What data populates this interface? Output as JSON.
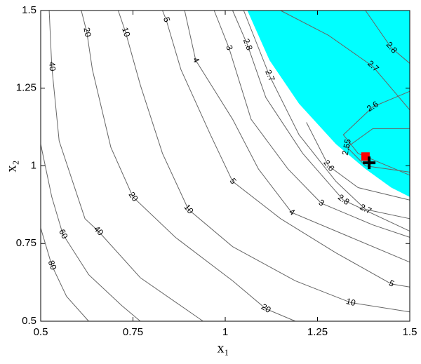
{
  "chart_data": {
    "type": "contour",
    "xlabel": "x₁",
    "ylabel": "x₂",
    "xlim": [
      0.5,
      1.5
    ],
    "ylim": [
      0.5,
      1.5
    ],
    "xticks": [
      0.5,
      0.75,
      1,
      1.25,
      1.5
    ],
    "yticks": [
      0.5,
      0.75,
      1,
      1.25,
      1.5
    ],
    "line_color": "#666666",
    "region": {
      "color": "#00ffff",
      "x": [
        1.06,
        1.12,
        1.2,
        1.3,
        1.38,
        1.45,
        1.5,
        1.5
      ],
      "y": [
        1.5,
        1.34,
        1.2,
        1.07,
        0.99,
        0.93,
        0.9,
        1.5
      ]
    },
    "contours": [
      {
        "level": 80,
        "x": [
          0.5,
          0.53,
          0.57,
          0.63
        ],
        "y": [
          0.8,
          0.68,
          0.58,
          0.5
        ]
      },
      {
        "level": 60,
        "x": [
          0.5,
          0.53,
          0.56,
          0.63,
          0.72,
          0.77
        ],
        "y": [
          1.07,
          0.9,
          0.78,
          0.65,
          0.55,
          0.5
        ]
      },
      {
        "level": 40,
        "x": [
          0.523,
          0.53,
          0.55,
          0.62,
          0.656,
          0.77,
          0.94
        ],
        "y": [
          1.5,
          1.32,
          1.08,
          0.83,
          0.79,
          0.64,
          0.5
        ]
      },
      {
        "level": 20,
        "x": [
          0.61,
          0.625,
          0.64,
          0.69,
          0.75,
          0.865,
          1.02,
          1.11,
          1.19
        ],
        "y": [
          1.5,
          1.43,
          1.31,
          1.06,
          0.9,
          0.77,
          0.63,
          0.54,
          0.5
        ]
      },
      {
        "level": 10,
        "x": [
          0.71,
          0.73,
          0.77,
          0.83,
          0.9,
          1.02,
          1.19,
          1.34,
          1.5
        ],
        "y": [
          1.5,
          1.43,
          1.26,
          1.04,
          0.86,
          0.74,
          0.63,
          0.56,
          0.53
        ]
      },
      {
        "level": 5,
        "x": [
          0.83,
          0.84,
          0.88,
          0.96,
          1.02,
          1.15,
          1.3,
          1.45,
          1.5
        ],
        "y": [
          1.5,
          1.47,
          1.31,
          1.1,
          0.95,
          0.83,
          0.72,
          0.62,
          0.61
        ]
      },
      {
        "level": 4,
        "x": [
          0.89,
          0.92,
          1.02,
          1.09,
          1.18,
          1.34,
          1.5
        ],
        "y": [
          1.5,
          1.34,
          1.15,
          0.99,
          0.85,
          0.77,
          0.69
        ]
      },
      {
        "level": 3,
        "x": [
          0.97,
          1.01,
          1.07,
          1.17,
          1.26,
          1.4,
          1.5
        ],
        "y": [
          1.5,
          1.38,
          1.15,
          0.99,
          0.88,
          0.81,
          0.77
        ]
      },
      {
        "level": 2.8,
        "x": [
          1.02,
          1.06,
          1.11,
          1.21,
          1.32,
          1.5
        ],
        "y": [
          1.5,
          1.39,
          1.22,
          1.04,
          0.89,
          0.79
        ]
      },
      {
        "level": 2.7,
        "x": [
          1.05,
          1.12,
          1.2,
          1.3,
          1.38,
          1.5
        ],
        "y": [
          1.5,
          1.29,
          1.1,
          0.95,
          0.86,
          0.83
        ]
      },
      {
        "level": 2.6,
        "x": [
          1.22,
          1.28,
          1.36,
          1.5
        ],
        "y": [
          1.14,
          1.0,
          0.93,
          0.89
        ]
      },
      {
        "level": 2.55,
        "x": [
          1.5,
          1.4,
          1.33,
          1.38,
          1.5
        ],
        "y": [
          1.12,
          1.12,
          1.06,
          1.0,
          0.98
        ]
      },
      {
        "level": 2.6,
        "x": [
          1.5,
          1.4,
          1.32,
          1.36,
          1.5
        ],
        "y": [
          1.24,
          1.19,
          1.1,
          1.04,
          0.97
        ]
      },
      {
        "level": 2.7,
        "x": [
          1.15,
          1.28,
          1.4,
          1.5
        ],
        "y": [
          1.5,
          1.42,
          1.32,
          1.18
        ]
      },
      {
        "level": 2.8,
        "x": [
          1.38,
          1.45,
          1.5
        ],
        "y": [
          1.5,
          1.38,
          1.33
        ]
      }
    ],
    "points": [
      {
        "marker": "square",
        "color": "#ff0000",
        "x": 1.38,
        "y": 1.03
      },
      {
        "marker": "plus",
        "color": "#000000",
        "x": 1.39,
        "y": 1.01
      }
    ]
  }
}
